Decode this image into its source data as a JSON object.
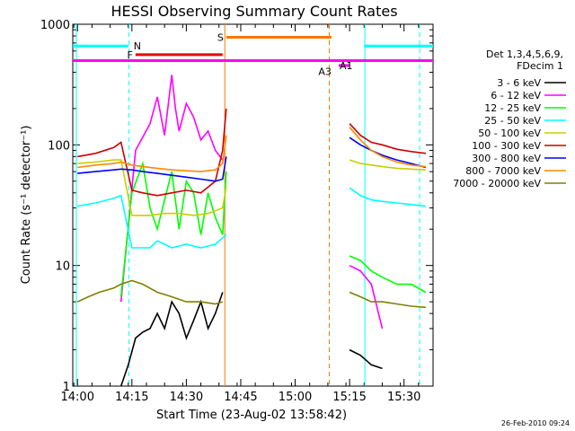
{
  "chart_data": {
    "type": "line",
    "title": "HESSI Observing Summary Count Rates",
    "xlabel": "Start Time (23-Aug-02 13:58:42)",
    "ylabel": "Count Rate (s⁻¹ detector⁻¹)",
    "y_scale": "log",
    "ylim": [
      1,
      1000
    ],
    "xlim_minutes_after_1400": [
      -1.3,
      98
    ],
    "x_tick_labels": [
      {
        "label": "14:00",
        "minute": 0
      },
      {
        "label": "14:15",
        "minute": 15
      },
      {
        "label": "14:30",
        "minute": 30
      },
      {
        "label": "14:45",
        "minute": 45
      },
      {
        "label": "15:00",
        "minute": 60
      },
      {
        "label": "15:15",
        "minute": 75
      },
      {
        "label": "15:30",
        "minute": 90
      }
    ],
    "y_tick_labels": [
      {
        "label": "1",
        "value": 1
      },
      {
        "label": "10",
        "value": 10
      },
      {
        "label": "100",
        "value": 100
      },
      {
        "label": "1000",
        "value": 1000
      }
    ],
    "legend_header": [
      "Det 1,3,4,5,6,9,",
      "FDecim 1"
    ],
    "legend_placement": "right",
    "footer_timestamp": "26-Feb-2010 09:24",
    "series": [
      {
        "name": "3 - 6 keV",
        "color": "#000000",
        "x": [
          12,
          14,
          16,
          18,
          20,
          22,
          24,
          26,
          28,
          30,
          32,
          34,
          36,
          38,
          40,
          75,
          78,
          81,
          84
        ],
        "values": [
          1,
          1.5,
          2.5,
          2.8,
          3,
          4,
          3,
          5,
          4,
          2.5,
          3.5,
          5,
          3,
          4,
          6,
          2,
          1.8,
          1.5,
          1.4
        ]
      },
      {
        "name": "6 - 12 keV",
        "color": "#ff00ff",
        "x": [
          12,
          16,
          20,
          22,
          24,
          26,
          27,
          28,
          30,
          32,
          34,
          36,
          38,
          40,
          75,
          78,
          81,
          84
        ],
        "values": [
          5,
          90,
          150,
          250,
          120,
          380,
          200,
          130,
          220,
          170,
          110,
          130,
          90,
          75,
          10,
          9,
          7,
          3
        ]
      },
      {
        "name": "12 - 25 keV",
        "color": "#00ff00",
        "x": [
          12,
          15,
          18,
          20,
          22,
          24,
          26,
          28,
          30,
          32,
          34,
          36,
          38,
          40,
          41,
          75,
          78,
          81,
          84,
          88,
          92,
          96
        ],
        "values": [
          5.5,
          40,
          70,
          30,
          20,
          35,
          60,
          20,
          50,
          40,
          18,
          40,
          25,
          18,
          60,
          12,
          11,
          9,
          8,
          7,
          7,
          6
        ]
      },
      {
        "name": "25 - 50 keV",
        "color": "#00ffff",
        "x": [
          0,
          5,
          10,
          12,
          15,
          18,
          20,
          22,
          24,
          26,
          30,
          34,
          38,
          41,
          75,
          78,
          81,
          84,
          88,
          92,
          96
        ],
        "values": [
          31,
          33,
          36,
          38,
          14,
          14,
          14,
          16,
          15,
          14,
          15,
          14,
          15,
          18,
          44,
          38,
          35,
          34,
          33,
          32,
          31
        ]
      },
      {
        "name": "50 - 100 keV",
        "color": "#cccc00",
        "x": [
          0,
          5,
          10,
          12,
          15,
          18,
          20,
          24,
          28,
          32,
          36,
          40,
          41,
          75,
          78,
          81,
          84,
          88,
          92,
          96
        ],
        "values": [
          70,
          72,
          75,
          75,
          26,
          26,
          26,
          27,
          27,
          26,
          27,
          30,
          45,
          75,
          70,
          68,
          66,
          64,
          63,
          62
        ]
      },
      {
        "name": "100 - 300 keV",
        "color": "#cc0000",
        "x": [
          0,
          5,
          10,
          12,
          15,
          18,
          22,
          26,
          30,
          34,
          38,
          40,
          41,
          75,
          78,
          81,
          84,
          88,
          92,
          96
        ],
        "values": [
          80,
          85,
          95,
          105,
          42,
          40,
          38,
          40,
          42,
          40,
          50,
          90,
          200,
          150,
          120,
          105,
          100,
          92,
          88,
          85
        ]
      },
      {
        "name": "300 - 800 keV",
        "color": "#0000ff",
        "x": [
          0,
          5,
          10,
          12,
          15,
          18,
          22,
          26,
          30,
          34,
          38,
          40,
          41,
          75,
          78,
          81,
          84,
          88,
          92,
          96
        ],
        "values": [
          58,
          60,
          62,
          63,
          62,
          60,
          58,
          56,
          54,
          52,
          50,
          52,
          80,
          115,
          100,
          90,
          82,
          75,
          70,
          65
        ]
      },
      {
        "name": "800 - 7000 keV",
        "color": "#ff8800",
        "x": [
          0,
          5,
          10,
          12,
          15,
          18,
          22,
          26,
          30,
          34,
          38,
          40,
          41,
          75,
          78,
          81,
          84,
          88,
          92,
          96
        ],
        "values": [
          65,
          68,
          70,
          72,
          68,
          66,
          64,
          62,
          61,
          60,
          62,
          70,
          120,
          140,
          110,
          90,
          80,
          72,
          68,
          66
        ]
      },
      {
        "name": "7000 - 20000 keV",
        "color": "#808000",
        "x": [
          0,
          3,
          6,
          10,
          12,
          15,
          18,
          22,
          26,
          30,
          34,
          38,
          40,
          75,
          78,
          81,
          84,
          88,
          92,
          96
        ],
        "values": [
          5,
          5.5,
          6,
          6.5,
          7,
          7.5,
          7,
          6,
          5.5,
          5,
          5,
          4.8,
          5,
          6,
          5.5,
          5,
          5,
          4.8,
          4.6,
          4.5
        ]
      }
    ],
    "annotations": [
      {
        "label": "N",
        "color": "#00ffff",
        "segments": [
          [
            -1.3,
            14
          ],
          [
            79,
            98
          ]
        ],
        "level": 660
      },
      {
        "label": "F",
        "color": "#ee0000",
        "segments": [
          [
            16,
            40
          ]
        ],
        "level": 560
      },
      {
        "label": "S",
        "color": "#ff7700",
        "segments": [
          [
            41,
            70
          ]
        ],
        "level": 780
      },
      {
        "label": "",
        "color": "#ff00ff",
        "segments": [
          [
            -1.3,
            98
          ]
        ],
        "level": 500
      },
      {
        "label": "A1",
        "color": "#ff00ff",
        "segments": [
          [
            72,
            75
          ]
        ],
        "level": 455
      },
      {
        "label": "A3",
        "color": "#ff00ff",
        "segments": [],
        "level": 405
      }
    ],
    "vertical_lines": [
      {
        "minute": -0.3,
        "color": "#00ffff",
        "style": "solid"
      },
      {
        "minute": 14.2,
        "color": "#00ffff",
        "style": "dashed"
      },
      {
        "minute": 40.6,
        "color": "#ff7700",
        "style": "solid"
      },
      {
        "minute": 69.4,
        "color": "#ff7700",
        "style": "dashed"
      },
      {
        "minute": 79.2,
        "color": "#00ffff",
        "style": "solid"
      },
      {
        "minute": 94.3,
        "color": "#00ffff",
        "style": "dashed"
      }
    ]
  }
}
